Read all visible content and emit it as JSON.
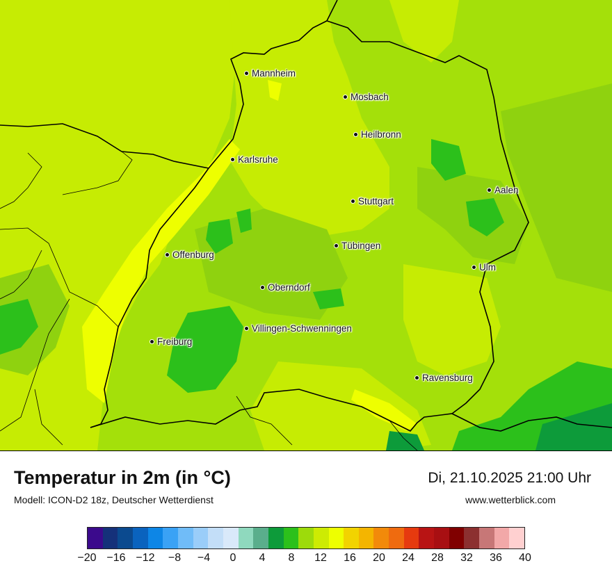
{
  "map": {
    "cities": [
      {
        "name": "Mannheim"
      },
      {
        "name": "Mosbach"
      },
      {
        "name": "Heilbronn"
      },
      {
        "name": "Karlsruhe"
      },
      {
        "name": "Stuttgart"
      },
      {
        "name": "Aalen"
      },
      {
        "name": "Tübingen"
      },
      {
        "name": "Offenburg"
      },
      {
        "name": "Ulm"
      },
      {
        "name": "Oberndorf"
      },
      {
        "name": "Villingen-Schwenningen"
      },
      {
        "name": "Freiburg"
      },
      {
        "name": "Ravensburg"
      }
    ]
  },
  "header": {
    "title": "Temperatur in 2m (in °C)",
    "model": "Modell: ICON-D2 18z, Deutscher Wetterdienst",
    "datetime": "Di, 21.10.2025 21:00 Uhr",
    "site": "www.wetterblick.com"
  },
  "legend": {
    "colors": [
      "#3b0a8c",
      "#15317a",
      "#0b4a8f",
      "#0a63be",
      "#0d86e6",
      "#3aa2f5",
      "#70bcf8",
      "#9acdf9",
      "#c3def8",
      "#d9e9fa",
      "#8fd9be",
      "#5aae8c",
      "#0d9b3a",
      "#2cc01b",
      "#9ddb0b",
      "#cdeb03",
      "#eeff00",
      "#f2d300",
      "#f4b500",
      "#f28a0a",
      "#ef6b0f",
      "#e63a0f",
      "#b81414",
      "#a80f12",
      "#800000",
      "#8c3030",
      "#c77777",
      "#f2a8a8",
      "#ffd0d0"
    ],
    "ticks": [
      "−20",
      "−16",
      "−12",
      "−8",
      "−4",
      "0",
      "4",
      "8",
      "12",
      "16",
      "20",
      "24",
      "28",
      "32",
      "36",
      "40"
    ]
  }
}
